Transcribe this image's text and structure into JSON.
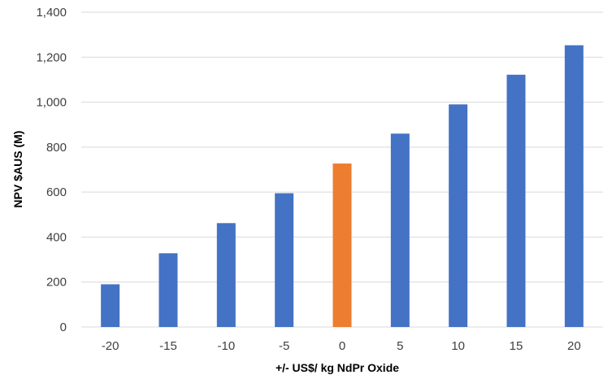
{
  "chart_data": {
    "type": "bar",
    "title": "",
    "xlabel": "+/- US$/ kg NdPr Oxide",
    "ylabel": "NPV $AUS (M)",
    "categories": [
      "-20",
      "-15",
      "-10",
      "-5",
      "0",
      "5",
      "10",
      "15",
      "20"
    ],
    "values": [
      190,
      328,
      462,
      595,
      727,
      860,
      990,
      1122,
      1253
    ],
    "highlight_category": "0",
    "ylim": [
      0,
      1400
    ],
    "yticks": [
      0,
      200,
      400,
      600,
      800,
      1000,
      1200,
      1400
    ],
    "ytick_labels": [
      "0",
      "200",
      "400",
      "600",
      "800",
      "1,000",
      "1,200",
      "1,400"
    ],
    "grid": true,
    "legend": "none",
    "colors": {
      "bar": "#4472C4",
      "highlight": "#ED7D31",
      "grid": "#D9D9D9",
      "axis": "#D9D9D9"
    }
  }
}
